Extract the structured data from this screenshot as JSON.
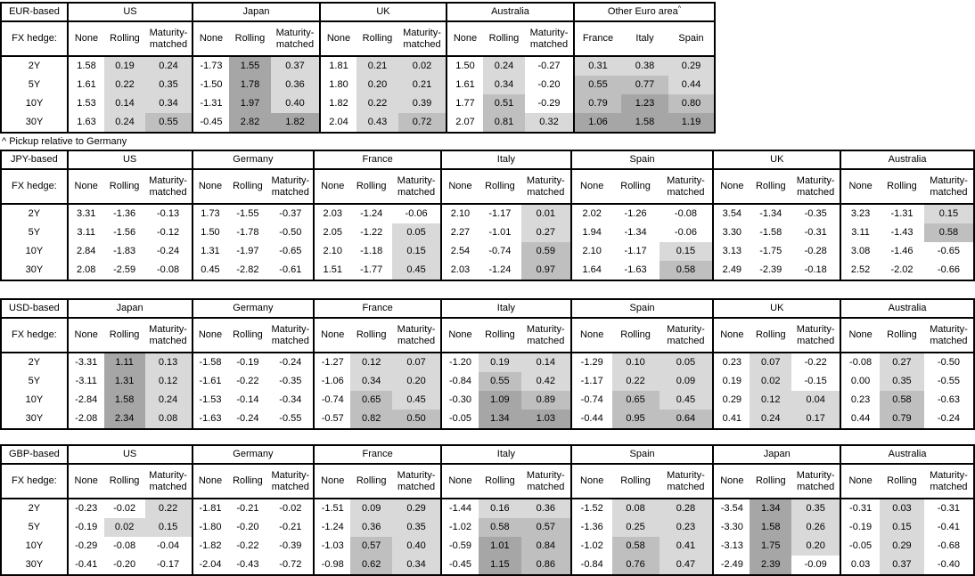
{
  "shading": {
    "light": "#d9d9d9",
    "mid": "#bfbfbf",
    "dark": "#a6a6a6"
  },
  "fx_hedge_label": "FX hedge:",
  "hedge_cols": [
    "None",
    "Rolling",
    "Maturity-matched"
  ],
  "row_labels": [
    "2Y",
    "5Y",
    "10Y",
    "30Y"
  ],
  "footnote": "^ Pickup relative to Germany",
  "tables": [
    {
      "base_label": "EUR-based",
      "groups": [
        {
          "name": "US",
          "rows": [
            [
              "1.58",
              "0.19",
              "0.24"
            ],
            [
              "1.61",
              "0.22",
              "0.35"
            ],
            [
              "1.53",
              "0.14",
              "0.34"
            ],
            [
              "1.63",
              "0.24",
              "0.55"
            ]
          ]
        },
        {
          "name": "Japan",
          "rows": [
            [
              "-1.73",
              "1.55",
              "0.37"
            ],
            [
              "-1.50",
              "1.78",
              "0.36"
            ],
            [
              "-1.31",
              "1.97",
              "0.40"
            ],
            [
              "-0.45",
              "2.82",
              "1.82"
            ]
          ]
        },
        {
          "name": "UK",
          "rows": [
            [
              "1.81",
              "0.21",
              "0.02"
            ],
            [
              "1.80",
              "0.20",
              "0.21"
            ],
            [
              "1.82",
              "0.22",
              "0.39"
            ],
            [
              "2.04",
              "0.43",
              "0.72"
            ]
          ]
        },
        {
          "name": "Australia",
          "rows": [
            [
              "1.50",
              "0.24",
              "-0.27"
            ],
            [
              "1.61",
              "0.34",
              "-0.20"
            ],
            [
              "1.77",
              "0.51",
              "-0.29"
            ],
            [
              "2.07",
              "0.81",
              "0.32"
            ]
          ]
        },
        {
          "name": "Other Euro area",
          "sup": "^",
          "equal_split": true,
          "cols": [
            "France",
            "Italy",
            "Spain"
          ],
          "shade_cols": [
            true,
            true,
            true
          ],
          "rows": [
            [
              "0.31",
              "0.38",
              "0.29"
            ],
            [
              "0.55",
              "0.77",
              "0.44"
            ],
            [
              "0.79",
              "1.23",
              "0.80"
            ],
            [
              "1.06",
              "1.58",
              "1.19"
            ]
          ]
        }
      ]
    },
    {
      "base_label": "JPY-based",
      "groups": [
        {
          "name": "US",
          "rows": [
            [
              "3.31",
              "-1.36",
              "-0.13"
            ],
            [
              "3.11",
              "-1.56",
              "-0.12"
            ],
            [
              "2.84",
              "-1.83",
              "-0.24"
            ],
            [
              "2.08",
              "-2.59",
              "-0.08"
            ]
          ]
        },
        {
          "name": "Germany",
          "rows": [
            [
              "1.73",
              "-1.55",
              "-0.37"
            ],
            [
              "1.50",
              "-1.78",
              "-0.50"
            ],
            [
              "1.31",
              "-1.97",
              "-0.65"
            ],
            [
              "0.45",
              "-2.82",
              "-0.61"
            ]
          ]
        },
        {
          "name": "France",
          "rows": [
            [
              "2.03",
              "-1.24",
              "-0.06"
            ],
            [
              "2.05",
              "-1.22",
              "0.05"
            ],
            [
              "2.10",
              "-1.18",
              "0.15"
            ],
            [
              "1.51",
              "-1.77",
              "0.45"
            ]
          ]
        },
        {
          "name": "Italy",
          "rows": [
            [
              "2.10",
              "-1.17",
              "0.01"
            ],
            [
              "2.27",
              "-1.01",
              "0.27"
            ],
            [
              "2.54",
              "-0.74",
              "0.59"
            ],
            [
              "2.03",
              "-1.24",
              "0.97"
            ]
          ]
        },
        {
          "name": "Spain",
          "rows": [
            [
              "2.02",
              "-1.26",
              "-0.08"
            ],
            [
              "1.94",
              "-1.34",
              "-0.06"
            ],
            [
              "2.10",
              "-1.17",
              "0.15"
            ],
            [
              "1.64",
              "-1.63",
              "0.58"
            ]
          ]
        },
        {
          "name": "UK",
          "rows": [
            [
              "3.54",
              "-1.34",
              "-0.35"
            ],
            [
              "3.30",
              "-1.58",
              "-0.31"
            ],
            [
              "3.13",
              "-1.75",
              "-0.28"
            ],
            [
              "2.49",
              "-2.39",
              "-0.18"
            ]
          ]
        },
        {
          "name": "Australia",
          "rows": [
            [
              "3.23",
              "-1.31",
              "0.15"
            ],
            [
              "3.11",
              "-1.43",
              "0.58"
            ],
            [
              "3.08",
              "-1.46",
              "-0.65"
            ],
            [
              "2.52",
              "-2.02",
              "-0.66"
            ]
          ]
        }
      ]
    },
    {
      "base_label": "USD-based",
      "groups": [
        {
          "name": "Japan",
          "rows": [
            [
              "-3.31",
              "1.11",
              "0.13"
            ],
            [
              "-3.11",
              "1.31",
              "0.12"
            ],
            [
              "-2.84",
              "1.58",
              "0.24"
            ],
            [
              "-2.08",
              "2.34",
              "0.08"
            ]
          ]
        },
        {
          "name": "Germany",
          "rows": [
            [
              "-1.58",
              "-0.19",
              "-0.24"
            ],
            [
              "-1.61",
              "-0.22",
              "-0.35"
            ],
            [
              "-1.53",
              "-0.14",
              "-0.34"
            ],
            [
              "-1.63",
              "-0.24",
              "-0.55"
            ]
          ]
        },
        {
          "name": "France",
          "rows": [
            [
              "-1.27",
              "0.12",
              "0.07"
            ],
            [
              "-1.06",
              "0.34",
              "0.20"
            ],
            [
              "-0.74",
              "0.65",
              "0.45"
            ],
            [
              "-0.57",
              "0.82",
              "0.50"
            ]
          ]
        },
        {
          "name": "Italy",
          "rows": [
            [
              "-1.20",
              "0.19",
              "0.14"
            ],
            [
              "-0.84",
              "0.55",
              "0.42"
            ],
            [
              "-0.30",
              "1.09",
              "0.89"
            ],
            [
              "-0.05",
              "1.34",
              "1.03"
            ]
          ]
        },
        {
          "name": "Spain",
          "rows": [
            [
              "-1.29",
              "0.10",
              "0.05"
            ],
            [
              "-1.17",
              "0.22",
              "0.09"
            ],
            [
              "-0.74",
              "0.65",
              "0.45"
            ],
            [
              "-0.44",
              "0.95",
              "0.64"
            ]
          ]
        },
        {
          "name": "UK",
          "rows": [
            [
              "0.23",
              "0.07",
              "-0.22"
            ],
            [
              "0.19",
              "0.02",
              "-0.15"
            ],
            [
              "0.29",
              "0.12",
              "0.04"
            ],
            [
              "0.41",
              "0.24",
              "0.17"
            ]
          ]
        },
        {
          "name": "Australia",
          "rows": [
            [
              "-0.08",
              "0.27",
              "-0.50"
            ],
            [
              "0.00",
              "0.35",
              "-0.55"
            ],
            [
              "0.23",
              "0.58",
              "-0.63"
            ],
            [
              "0.44",
              "0.79",
              "-0.24"
            ]
          ]
        }
      ]
    },
    {
      "base_label": "GBP-based",
      "groups": [
        {
          "name": "US",
          "rows": [
            [
              "-0.23",
              "-0.02",
              "0.22"
            ],
            [
              "-0.19",
              "0.02",
              "0.15"
            ],
            [
              "-0.29",
              "-0.08",
              "-0.04"
            ],
            [
              "-0.41",
              "-0.20",
              "-0.17"
            ]
          ]
        },
        {
          "name": "Germany",
          "rows": [
            [
              "-1.81",
              "-0.21",
              "-0.02"
            ],
            [
              "-1.80",
              "-0.20",
              "-0.21"
            ],
            [
              "-1.82",
              "-0.22",
              "-0.39"
            ],
            [
              "-2.04",
              "-0.43",
              "-0.72"
            ]
          ]
        },
        {
          "name": "France",
          "rows": [
            [
              "-1.51",
              "0.09",
              "0.29"
            ],
            [
              "-1.24",
              "0.36",
              "0.35"
            ],
            [
              "-1.03",
              "0.57",
              "0.40"
            ],
            [
              "-0.98",
              "0.62",
              "0.34"
            ]
          ]
        },
        {
          "name": "Italy",
          "rows": [
            [
              "-1.44",
              "0.16",
              "0.36"
            ],
            [
              "-1.02",
              "0.58",
              "0.57"
            ],
            [
              "-0.59",
              "1.01",
              "0.84"
            ],
            [
              "-0.45",
              "1.15",
              "0.86"
            ]
          ]
        },
        {
          "name": "Spain",
          "rows": [
            [
              "-1.52",
              "0.08",
              "0.28"
            ],
            [
              "-1.36",
              "0.25",
              "0.23"
            ],
            [
              "-1.02",
              "0.58",
              "0.41"
            ],
            [
              "-0.84",
              "0.76",
              "0.47"
            ]
          ]
        },
        {
          "name": "Japan",
          "rows": [
            [
              "-3.54",
              "1.34",
              "0.35"
            ],
            [
              "-3.30",
              "1.58",
              "0.26"
            ],
            [
              "-3.13",
              "1.75",
              "0.20"
            ],
            [
              "-2.49",
              "2.39",
              "-0.09"
            ]
          ]
        },
        {
          "name": "Australia",
          "rows": [
            [
              "-0.31",
              "0.03",
              "-0.31"
            ],
            [
              "-0.19",
              "0.15",
              "-0.41"
            ],
            [
              "-0.05",
              "0.29",
              "-0.68"
            ],
            [
              "0.03",
              "0.37",
              "-0.40"
            ]
          ]
        }
      ]
    }
  ]
}
